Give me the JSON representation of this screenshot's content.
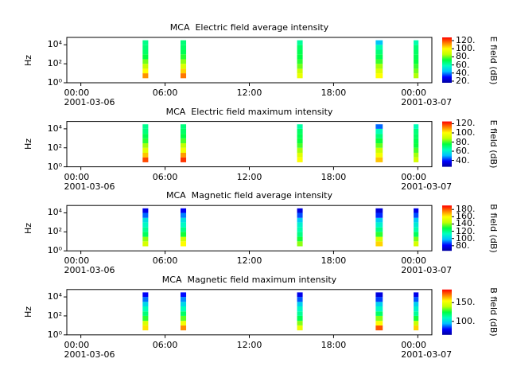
{
  "chart_data": [
    {
      "type": "heatmap",
      "title": "MCA  Electric field average intensity",
      "ylabel": "Hz",
      "y_log": true,
      "ylim": [
        1,
        60000
      ],
      "yticks": [
        {
          "value": 1,
          "label": "10⁰"
        },
        {
          "value": 100,
          "label": "10²"
        },
        {
          "value": 10000,
          "label": "10⁴"
        }
      ],
      "xlim": [
        -1,
        25
      ],
      "xticks": [
        {
          "value": 0,
          "label": "00:00\n2001-03-06"
        },
        {
          "value": 6,
          "label": "06:00"
        },
        {
          "value": 12,
          "label": "12:00"
        },
        {
          "value": 18,
          "label": "18:00"
        },
        {
          "value": 24,
          "label": "00:00\n2001-03-07"
        }
      ],
      "frequency_bins": [
        3,
        10,
        30,
        100,
        300,
        1000,
        3000,
        10000,
        30000
      ],
      "bursts": [
        {
          "start": 4.4,
          "end": 4.8,
          "values": [
            112,
            100,
            88,
            80,
            72,
            68,
            66,
            64
          ]
        },
        {
          "start": 7.1,
          "end": 7.5,
          "values": [
            115,
            105,
            92,
            82,
            75,
            70,
            68,
            66
          ]
        },
        {
          "start": 15.4,
          "end": 15.8,
          "values": [
            95,
            88,
            80,
            75,
            72,
            70,
            68,
            62
          ]
        },
        {
          "start": 21.0,
          "end": 21.5,
          "values": [
            100,
            92,
            84,
            76,
            70,
            66,
            60,
            45
          ]
        },
        {
          "start": 23.7,
          "end": 24.05,
          "values": [
            85,
            80,
            76,
            72,
            70,
            68,
            66,
            60
          ]
        }
      ],
      "colorbar": {
        "label": "E field (dB)",
        "clim": [
          16,
          128
        ],
        "ticks": [
          {
            "value": 20,
            "label": "20."
          },
          {
            "value": 40,
            "label": "40."
          },
          {
            "value": 60,
            "label": "60."
          },
          {
            "value": 80,
            "label": "80."
          },
          {
            "value": 100,
            "label": "100."
          },
          {
            "value": 120,
            "label": "120."
          }
        ]
      },
      "colormap": [
        "#0000a0",
        "#0000ff",
        "#00c0ff",
        "#00ffc0",
        "#00ff40",
        "#c0ff00",
        "#ffff00",
        "#ff8000",
        "#ff0000"
      ]
    },
    {
      "type": "heatmap",
      "title": "MCA  Electric field maximum intensity",
      "ylabel": "Hz",
      "y_log": true,
      "ylim": [
        1,
        60000
      ],
      "yticks": [
        {
          "value": 1,
          "label": "10⁰"
        },
        {
          "value": 100,
          "label": "10²"
        },
        {
          "value": 10000,
          "label": "10⁴"
        }
      ],
      "xlim": [
        -1,
        25
      ],
      "xticks": [
        {
          "value": 0,
          "label": "00:00\n2001-03-06"
        },
        {
          "value": 6,
          "label": "06:00"
        },
        {
          "value": 12,
          "label": "12:00"
        },
        {
          "value": 18,
          "label": "18:00"
        },
        {
          "value": 24,
          "label": "00:00\n2001-03-07"
        }
      ],
      "frequency_bins": [
        3,
        10,
        30,
        100,
        300,
        1000,
        3000,
        10000,
        30000
      ],
      "bursts": [
        {
          "start": 4.4,
          "end": 4.8,
          "values": [
            118,
            106,
            95,
            86,
            78,
            74,
            70,
            68
          ]
        },
        {
          "start": 7.1,
          "end": 7.5,
          "values": [
            120,
            110,
            98,
            88,
            80,
            75,
            72,
            70
          ]
        },
        {
          "start": 15.4,
          "end": 15.8,
          "values": [
            100,
            94,
            86,
            80,
            76,
            74,
            72,
            66
          ]
        },
        {
          "start": 21.0,
          "end": 21.5,
          "values": [
            106,
            98,
            90,
            82,
            76,
            70,
            64,
            45
          ]
        },
        {
          "start": 23.7,
          "end": 24.05,
          "values": [
            92,
            86,
            80,
            76,
            74,
            72,
            70,
            64
          ]
        }
      ],
      "colorbar": {
        "label": "E field (dB)",
        "clim": [
          26,
          125
        ],
        "ticks": [
          {
            "value": 40,
            "label": "40."
          },
          {
            "value": 60,
            "label": "60."
          },
          {
            "value": 80,
            "label": "80."
          },
          {
            "value": 100,
            "label": "100."
          },
          {
            "value": 120,
            "label": "120."
          }
        ]
      },
      "colormap": [
        "#0000a0",
        "#0000ff",
        "#00c0ff",
        "#00ffc0",
        "#00ff40",
        "#c0ff00",
        "#ffff00",
        "#ff8000",
        "#ff0000"
      ]
    },
    {
      "type": "heatmap",
      "title": "MCA  Magnetic field average intensity",
      "ylabel": "Hz",
      "y_log": true,
      "ylim": [
        1,
        60000
      ],
      "yticks": [
        {
          "value": 1,
          "label": "10⁰"
        },
        {
          "value": 100,
          "label": "10²"
        },
        {
          "value": 10000,
          "label": "10⁴"
        }
      ],
      "xlim": [
        -1,
        25
      ],
      "xticks": [
        {
          "value": 0,
          "label": "00:00\n2001-03-06"
        },
        {
          "value": 6,
          "label": "06:00"
        },
        {
          "value": 12,
          "label": "12:00"
        },
        {
          "value": 18,
          "label": "18:00"
        },
        {
          "value": 24,
          "label": "00:00\n2001-03-07"
        }
      ],
      "frequency_bins": [
        3,
        10,
        30,
        100,
        300,
        1000,
        3000,
        10000,
        30000
      ],
      "bursts": [
        {
          "start": 4.4,
          "end": 4.8,
          "values": [
            150,
            140,
            125,
            118,
            112,
            105,
            90,
            78
          ]
        },
        {
          "start": 7.1,
          "end": 7.5,
          "values": [
            160,
            148,
            130,
            120,
            112,
            105,
            92,
            80
          ]
        },
        {
          "start": 15.4,
          "end": 15.8,
          "values": [
            140,
            130,
            120,
            115,
            110,
            100,
            88,
            76
          ]
        },
        {
          "start": 21.0,
          "end": 21.5,
          "values": [
            165,
            150,
            132,
            120,
            110,
            100,
            85,
            75
          ]
        },
        {
          "start": 23.7,
          "end": 24.05,
          "values": [
            150,
            138,
            125,
            115,
            108,
            100,
            88,
            78
          ]
        }
      ],
      "colorbar": {
        "label": "B field (dB)",
        "clim": [
          66,
          191
        ],
        "ticks": [
          {
            "value": 80,
            "label": "80."
          },
          {
            "value": 100,
            "label": "100."
          },
          {
            "value": 120,
            "label": "120."
          },
          {
            "value": 140,
            "label": "140."
          },
          {
            "value": 160,
            "label": "160."
          },
          {
            "value": 180,
            "label": "180."
          }
        ]
      },
      "colormap": [
        "#0000a0",
        "#0000ff",
        "#00c0ff",
        "#00ffc0",
        "#00ff40",
        "#c0ff00",
        "#ffff00",
        "#ff8000",
        "#ff0000"
      ]
    },
    {
      "type": "heatmap",
      "title": "MCA  Magnetic field maximum intensity",
      "ylabel": "Hz",
      "y_log": true,
      "ylim": [
        1,
        60000
      ],
      "yticks": [
        {
          "value": 1,
          "label": "10⁰"
        },
        {
          "value": 100,
          "label": "10²"
        },
        {
          "value": 10000,
          "label": "10⁴"
        }
      ],
      "xlim": [
        -1,
        25
      ],
      "xticks": [
        {
          "value": 0,
          "label": "00:00\n2001-03-06"
        },
        {
          "value": 6,
          "label": "06:00"
        },
        {
          "value": 12,
          "label": "12:00"
        },
        {
          "value": 18,
          "label": "18:00"
        },
        {
          "value": 24,
          "label": "00:00\n2001-03-07"
        }
      ],
      "frequency_bins": [
        3,
        10,
        30,
        100,
        300,
        1000,
        3000,
        10000,
        30000
      ],
      "bursts": [
        {
          "start": 4.4,
          "end": 4.8,
          "values": [
            158,
            146,
            128,
            118,
            110,
            100,
            88,
            78
          ]
        },
        {
          "start": 7.1,
          "end": 7.5,
          "values": [
            168,
            152,
            132,
            120,
            110,
            100,
            90,
            80
          ]
        },
        {
          "start": 15.4,
          "end": 15.8,
          "values": [
            150,
            135,
            122,
            114,
            108,
            98,
            86,
            76
          ]
        },
        {
          "start": 21.0,
          "end": 21.5,
          "values": [
            175,
            155,
            135,
            120,
            108,
            98,
            84,
            74
          ]
        },
        {
          "start": 23.7,
          "end": 24.05,
          "values": [
            160,
            142,
            126,
            114,
            106,
            98,
            86,
            76
          ]
        }
      ],
      "colorbar": {
        "label": "B field (dB)",
        "clim": [
          64,
          185
        ],
        "ticks": [
          {
            "value": 100,
            "label": "100."
          },
          {
            "value": 150,
            "label": "150."
          }
        ]
      },
      "colormap": [
        "#0000a0",
        "#0000ff",
        "#00c0ff",
        "#00ffc0",
        "#00ff40",
        "#c0ff00",
        "#ffff00",
        "#ff8000",
        "#ff0000"
      ]
    }
  ]
}
